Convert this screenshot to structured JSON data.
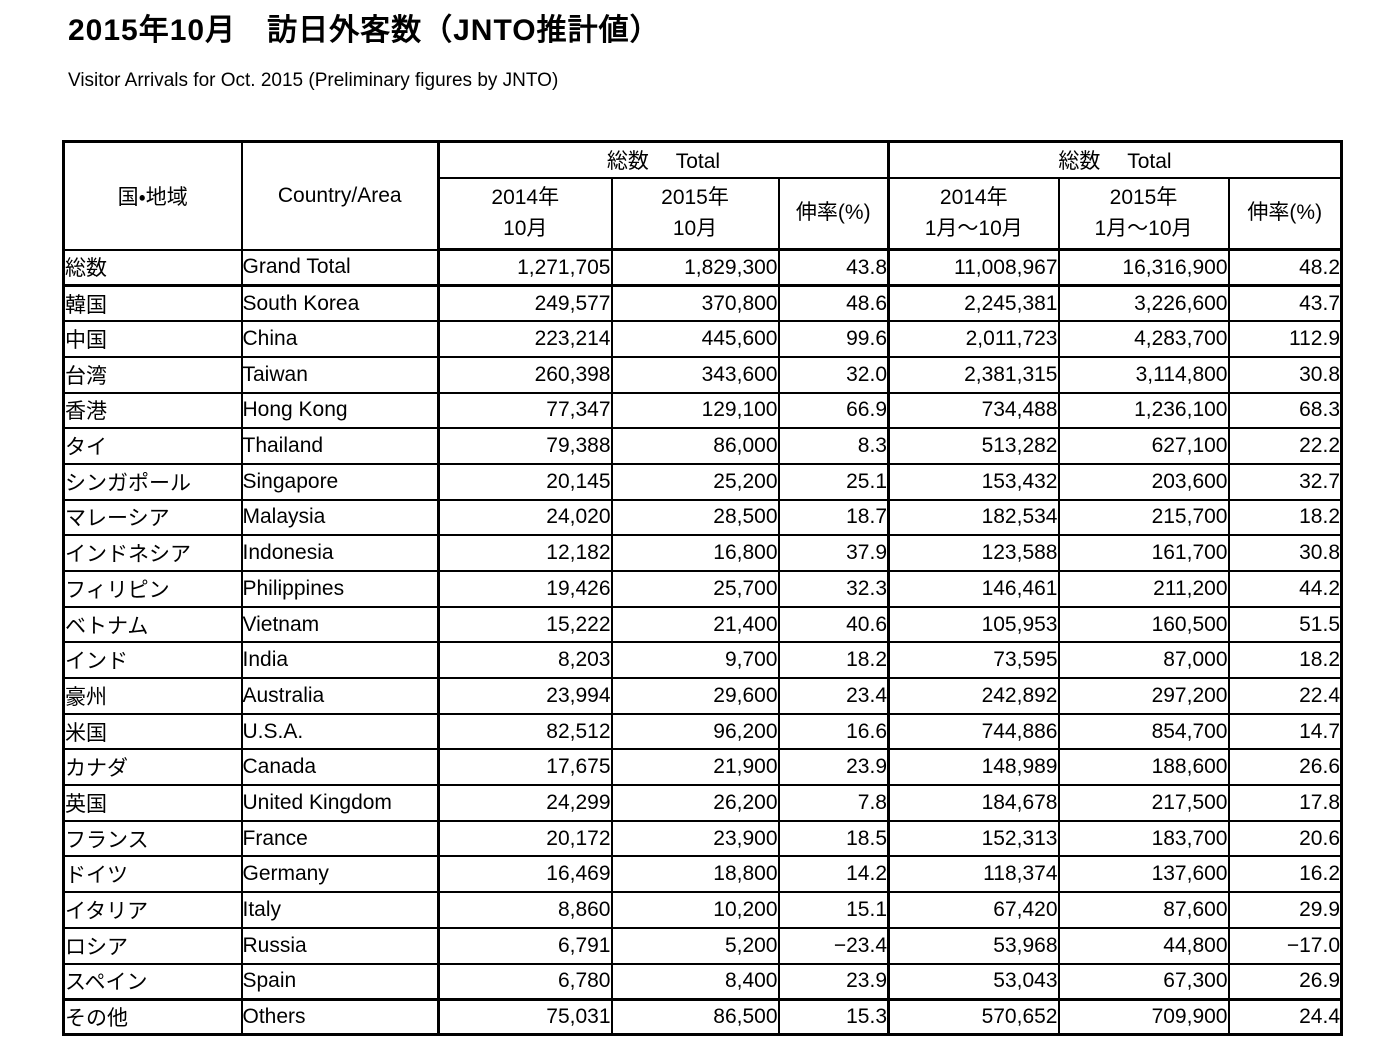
{
  "page": {
    "title": "2015年10月　訪日外客数（JNTO推計値）",
    "subtitle": "Visitor Arrivals for Oct. 2015 (Preliminary figures by JNTO)"
  },
  "table": {
    "header": {
      "country_jp": "国・地域",
      "country_en": "Country/Area",
      "group1_label": "総数　 Total",
      "group2_label": "総数　 Total",
      "sub_headers": [
        {
          "line1": "2014年",
          "line2": "10月"
        },
        {
          "line1": "2015年",
          "line2": "10月"
        },
        {
          "line1": "伸率(%)",
          "line2": ""
        },
        {
          "line1": "2014年",
          "line2": "1月～10月"
        },
        {
          "line1": "2015年",
          "line2": "1月～10月"
        },
        {
          "line1": "伸率(%)",
          "line2": ""
        }
      ]
    },
    "rows": [
      {
        "jp": "総数",
        "en": "Grand Total",
        "values": [
          "1,271,705",
          "1,829,300",
          "43.8",
          "11,008,967",
          "16,316,900",
          "48.2"
        ]
      },
      {
        "jp": "韓国",
        "en": "South Korea",
        "values": [
          "249,577",
          "370,800",
          "48.6",
          "2,245,381",
          "3,226,600",
          "43.7"
        ]
      },
      {
        "jp": "中国",
        "en": "China",
        "values": [
          "223,214",
          "445,600",
          "99.6",
          "2,011,723",
          "4,283,700",
          "112.9"
        ]
      },
      {
        "jp": "台湾",
        "en": "Taiwan",
        "values": [
          "260,398",
          "343,600",
          "32.0",
          "2,381,315",
          "3,114,800",
          "30.8"
        ]
      },
      {
        "jp": "香港",
        "en": "Hong Kong",
        "values": [
          "77,347",
          "129,100",
          "66.9",
          "734,488",
          "1,236,100",
          "68.3"
        ]
      },
      {
        "jp": "タイ",
        "en": "Thailand",
        "values": [
          "79,388",
          "86,000",
          "8.3",
          "513,282",
          "627,100",
          "22.2"
        ]
      },
      {
        "jp": "シンガポール",
        "en": "Singapore",
        "values": [
          "20,145",
          "25,200",
          "25.1",
          "153,432",
          "203,600",
          "32.7"
        ]
      },
      {
        "jp": "マレーシア",
        "en": "Malaysia",
        "values": [
          "24,020",
          "28,500",
          "18.7",
          "182,534",
          "215,700",
          "18.2"
        ]
      },
      {
        "jp": "インドネシア",
        "en": "Indonesia",
        "values": [
          "12,182",
          "16,800",
          "37.9",
          "123,588",
          "161,700",
          "30.8"
        ]
      },
      {
        "jp": "フィリピン",
        "en": "Philippines",
        "values": [
          "19,426",
          "25,700",
          "32.3",
          "146,461",
          "211,200",
          "44.2"
        ]
      },
      {
        "jp": "ベトナム",
        "en": "Vietnam",
        "values": [
          "15,222",
          "21,400",
          "40.6",
          "105,953",
          "160,500",
          "51.5"
        ]
      },
      {
        "jp": "インド",
        "en": "India",
        "values": [
          "8,203",
          "9,700",
          "18.2",
          "73,595",
          "87,000",
          "18.2"
        ]
      },
      {
        "jp": "豪州",
        "en": "Australia",
        "values": [
          "23,994",
          "29,600",
          "23.4",
          "242,892",
          "297,200",
          "22.4"
        ]
      },
      {
        "jp": "米国",
        "en": "U.S.A.",
        "values": [
          "82,512",
          "96,200",
          "16.6",
          "744,886",
          "854,700",
          "14.7"
        ]
      },
      {
        "jp": "カナダ",
        "en": "Canada",
        "values": [
          "17,675",
          "21,900",
          "23.9",
          "148,989",
          "188,600",
          "26.6"
        ]
      },
      {
        "jp": "英国",
        "en": "United Kingdom",
        "values": [
          "24,299",
          "26,200",
          "7.8",
          "184,678",
          "217,500",
          "17.8"
        ]
      },
      {
        "jp": "フランス",
        "en": "France",
        "values": [
          "20,172",
          "23,900",
          "18.5",
          "152,313",
          "183,700",
          "20.6"
        ]
      },
      {
        "jp": "ドイツ",
        "en": "Germany",
        "values": [
          "16,469",
          "18,800",
          "14.2",
          "118,374",
          "137,600",
          "16.2"
        ]
      },
      {
        "jp": "イタリア",
        "en": "Italy",
        "values": [
          "8,860",
          "10,200",
          "15.1",
          "67,420",
          "87,600",
          "29.9"
        ]
      },
      {
        "jp": "ロシア",
        "en": "Russia",
        "values": [
          "6,791",
          "5,200",
          "−23.4",
          "53,968",
          "44,800",
          "−17.0"
        ]
      },
      {
        "jp": "スペイン",
        "en": "Spain",
        "values": [
          "6,780",
          "8,400",
          "23.9",
          "53,043",
          "67,300",
          "26.9"
        ]
      },
      {
        "jp": "その他",
        "en": "Others",
        "values": [
          "75,031",
          "86,500",
          "15.3",
          "570,652",
          "709,900",
          "24.4"
        ]
      }
    ]
  }
}
